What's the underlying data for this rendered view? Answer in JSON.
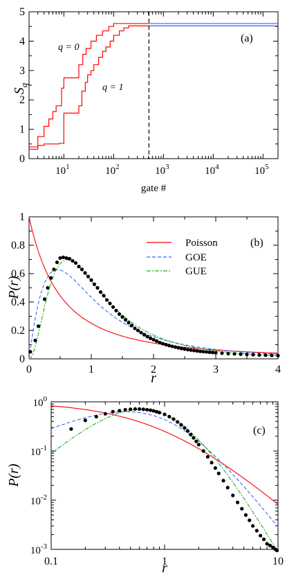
{
  "chart_data": [
    {
      "panel": "(a)",
      "type": "line",
      "x_scale": "log",
      "xlim": [
        2,
        200000
      ],
      "ylim": [
        0,
        5
      ],
      "xlabel": "gate #",
      "ylabel": "S",
      "ylabel_subscript": "q",
      "x_ticks": [
        10,
        100,
        1000,
        10000,
        100000
      ],
      "x_ticklabels": [
        {
          "base": "10",
          "exp": "1"
        },
        {
          "base": "10",
          "exp": "2"
        },
        {
          "base": "10",
          "exp": "3"
        },
        {
          "base": "10",
          "exp": "4"
        },
        {
          "base": "10",
          "exp": "5"
        }
      ],
      "y_ticks": [
        0,
        1,
        2,
        3,
        4,
        5
      ],
      "y_ticklabels": [
        "0",
        "1",
        "2",
        "3",
        "4",
        "5"
      ],
      "annotations": [
        "q = 0",
        "q = 1"
      ],
      "vline_x": 512,
      "colors": {
        "early": "#ff0000",
        "late": "#3366ff",
        "vline": "#000000"
      },
      "series": [
        {
          "label": "q = 0",
          "points": [
            [
              2,
              0.4
            ],
            [
              3,
              0.4
            ],
            [
              3,
              0.75
            ],
            [
              4,
              0.75
            ],
            [
              4,
              1.1
            ],
            [
              5,
              1.1
            ],
            [
              5,
              1.35
            ],
            [
              6,
              1.35
            ],
            [
              6,
              1.6
            ],
            [
              7,
              1.6
            ],
            [
              7,
              1.8
            ],
            [
              9,
              1.8
            ],
            [
              9,
              2.4
            ],
            [
              10,
              2.4
            ],
            [
              10,
              2.75
            ],
            [
              20,
              2.75
            ],
            [
              20,
              3.2
            ],
            [
              24,
              3.2
            ],
            [
              24,
              3.55
            ],
            [
              28,
              3.55
            ],
            [
              28,
              3.75
            ],
            [
              35,
              3.75
            ],
            [
              35,
              4.0
            ],
            [
              45,
              4.0
            ],
            [
              45,
              4.2
            ],
            [
              60,
              4.2
            ],
            [
              60,
              4.35
            ],
            [
              80,
              4.35
            ],
            [
              80,
              4.5
            ],
            [
              100,
              4.5
            ],
            [
              100,
              4.6
            ],
            [
              512,
              4.6
            ],
            [
              200000,
              4.6
            ]
          ]
        },
        {
          "label": "q = 1",
          "points": [
            [
              2,
              0.32
            ],
            [
              3,
              0.32
            ],
            [
              3,
              0.45
            ],
            [
              4,
              0.45
            ],
            [
              4,
              0.5
            ],
            [
              8,
              0.5
            ],
            [
              8,
              0.52
            ],
            [
              10,
              0.52
            ],
            [
              10,
              1.55
            ],
            [
              20,
              1.55
            ],
            [
              20,
              1.8
            ],
            [
              23,
              1.8
            ],
            [
              23,
              2.3
            ],
            [
              27,
              2.3
            ],
            [
              27,
              2.6
            ],
            [
              30,
              2.6
            ],
            [
              30,
              2.85
            ],
            [
              35,
              2.85
            ],
            [
              35,
              3.0
            ],
            [
              40,
              3.0
            ],
            [
              40,
              3.2
            ],
            [
              50,
              3.2
            ],
            [
              50,
              3.45
            ],
            [
              60,
              3.45
            ],
            [
              60,
              3.65
            ],
            [
              70,
              3.65
            ],
            [
              70,
              3.8
            ],
            [
              85,
              3.8
            ],
            [
              85,
              4.0
            ],
            [
              100,
              4.0
            ],
            [
              100,
              4.2
            ],
            [
              130,
              4.2
            ],
            [
              130,
              4.35
            ],
            [
              160,
              4.35
            ],
            [
              160,
              4.45
            ],
            [
              200,
              4.45
            ],
            [
              200,
              4.52
            ],
            [
              512,
              4.52
            ],
            [
              200000,
              4.52
            ]
          ]
        }
      ]
    },
    {
      "panel": "(b)",
      "type": "line",
      "xlim": [
        0,
        4
      ],
      "ylim": [
        0,
        1
      ],
      "xlabel": "r",
      "ylabel": "P(r)",
      "x_ticks": [
        0,
        1,
        2,
        3,
        4
      ],
      "x_ticklabels": [
        "0",
        "1",
        "2",
        "3",
        "4"
      ],
      "y_ticks": [
        0,
        0.2,
        0.4,
        0.6,
        0.8,
        1
      ],
      "y_ticklabels": [
        "0",
        "0.2",
        "0.4",
        "0.6",
        "0.8",
        "1"
      ],
      "legend": {
        "placement": "upper-right",
        "entries": [
          {
            "label": "Poisson",
            "color": "#ff0000",
            "dash": "solid"
          },
          {
            "label": "GOE",
            "color": "#3366ff",
            "dash": "dashed"
          },
          {
            "label": "GUE",
            "color": "#22aa22",
            "dash": "dashdot"
          }
        ]
      },
      "scatter": {
        "name": "data",
        "color": "#000000",
        "x": [
          0.02,
          0.1,
          0.15,
          0.25,
          0.3,
          0.35,
          0.4,
          0.45,
          0.5,
          0.55,
          0.6,
          0.65,
          0.7,
          0.75,
          0.8,
          0.85,
          0.9,
          0.95,
          1.0,
          1.05,
          1.1,
          1.15,
          1.2,
          1.25,
          1.3,
          1.35,
          1.4,
          1.45,
          1.5,
          1.55,
          1.6,
          1.65,
          1.7,
          1.75,
          1.8,
          1.85,
          1.9,
          1.95,
          2.0,
          2.05,
          2.1,
          2.15,
          2.2,
          2.25,
          2.3,
          2.35,
          2.4,
          2.45,
          2.5,
          2.55,
          2.6,
          2.65,
          2.7,
          2.75,
          2.8,
          2.85,
          2.9,
          2.95,
          3.0,
          3.1,
          3.2,
          3.3,
          3.4,
          3.5,
          3.6,
          3.7,
          3.8,
          3.9,
          4.0
        ],
        "y": [
          0.05,
          0.13,
          0.23,
          0.42,
          0.5,
          0.57,
          0.63,
          0.68,
          0.71,
          0.715,
          0.71,
          0.705,
          0.69,
          0.675,
          0.65,
          0.63,
          0.605,
          0.58,
          0.555,
          0.525,
          0.5,
          0.47,
          0.445,
          0.415,
          0.39,
          0.365,
          0.34,
          0.315,
          0.295,
          0.275,
          0.255,
          0.235,
          0.215,
          0.2,
          0.185,
          0.17,
          0.157,
          0.145,
          0.135,
          0.125,
          0.115,
          0.107,
          0.1,
          0.094,
          0.088,
          0.083,
          0.078,
          0.073,
          0.069,
          0.065,
          0.062,
          0.059,
          0.056,
          0.053,
          0.051,
          0.049,
          0.047,
          0.045,
          0.043,
          0.04,
          0.037,
          0.035,
          0.033,
          0.031,
          0.029,
          0.027,
          0.026,
          0.024,
          0.023
        ]
      }
    },
    {
      "panel": "(c)",
      "type": "line",
      "x_scale": "log",
      "y_scale": "log",
      "xlim": [
        0.1,
        10
      ],
      "ylim": [
        0.001,
        1
      ],
      "xlabel": "r",
      "ylabel": "P(r)",
      "x_ticks": [
        0.1,
        1,
        10
      ],
      "x_ticklabels": [
        "0.1",
        "1",
        "10"
      ],
      "y_ticks": [
        0.001,
        0.01,
        0.1,
        1
      ],
      "y_ticklabels": [
        {
          "base": "10",
          "exp": "-3"
        },
        {
          "base": "10",
          "exp": "-2"
        },
        {
          "base": "10",
          "exp": "-1"
        },
        {
          "base": "10",
          "exp": "0"
        }
      ],
      "scatter": {
        "name": "data",
        "color": "#000000",
        "x": [
          0.15,
          0.2,
          0.25,
          0.3,
          0.35,
          0.4,
          0.45,
          0.5,
          0.55,
          0.6,
          0.65,
          0.7,
          0.75,
          0.8,
          0.85,
          0.9,
          1.0,
          1.1,
          1.2,
          1.3,
          1.4,
          1.5,
          1.6,
          1.7,
          1.8,
          1.9,
          2.0,
          2.2,
          2.4,
          2.6,
          2.8,
          3.0,
          3.3,
          3.6,
          4.0,
          4.4,
          4.8,
          5.2,
          5.6,
          6.0,
          6.5,
          7.0,
          7.5,
          8.0,
          8.5,
          9.0,
          9.5,
          9.8
        ],
        "y": [
          0.28,
          0.42,
          0.5,
          0.57,
          0.63,
          0.66,
          0.69,
          0.705,
          0.715,
          0.715,
          0.705,
          0.69,
          0.675,
          0.655,
          0.63,
          0.605,
          0.555,
          0.5,
          0.445,
          0.39,
          0.34,
          0.295,
          0.255,
          0.215,
          0.185,
          0.157,
          0.135,
          0.1,
          0.076,
          0.058,
          0.045,
          0.035,
          0.025,
          0.018,
          0.0125,
          0.009,
          0.0067,
          0.005,
          0.0039,
          0.003,
          0.0024,
          0.0019,
          0.0016,
          0.0013,
          0.0012,
          0.0011,
          0.001,
          0.00095
        ]
      }
    }
  ]
}
